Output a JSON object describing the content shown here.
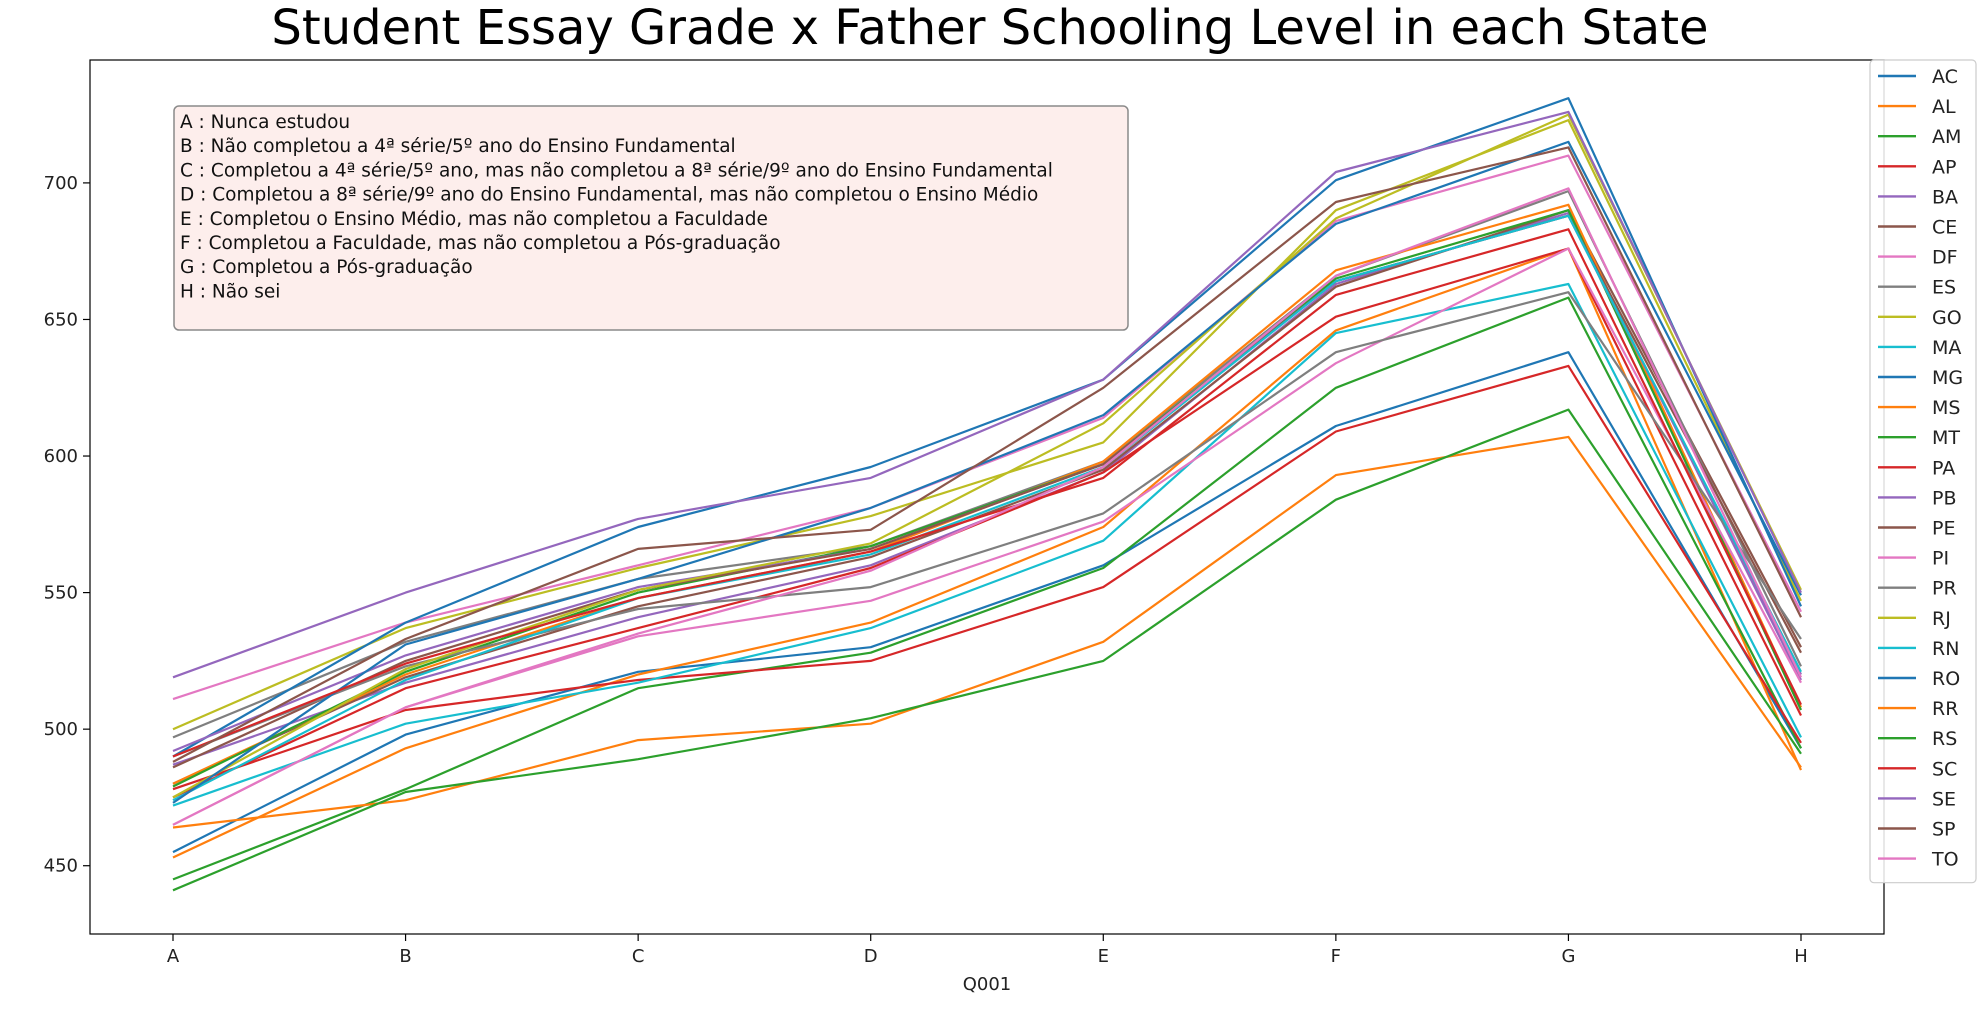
{
  "chart_data": {
    "type": "line",
    "title": "Student Essay Grade x Father Schooling Level in each State",
    "xlabel": "Q001",
    "ylabel": "",
    "categories": [
      "A",
      "B",
      "C",
      "D",
      "E",
      "F",
      "G",
      "H"
    ],
    "ylim": [
      425,
      745
    ],
    "yticks": [
      450,
      500,
      550,
      600,
      650,
      700
    ],
    "grid": false,
    "legend_position": "right, outside",
    "annotation_lines": [
      "A : Nunca estudou",
      "B : Não completou a 4ª série/5º ano do Ensino Fundamental",
      "C : Completou a 4ª série/5º ano, mas não completou a 8ª série/9º ano do Ensino Fundamental",
      "D : Completou a 8ª série/9º ano do Ensino Fundamental, mas não completou o Ensino Médio",
      "E : Completou o Ensino Médio, mas não completou a Faculdade",
      "F : Completou a Faculdade, mas não completou a Pós-graduação",
      "G : Completou a Pós-graduação",
      "H : Não sei"
    ],
    "series": [
      {
        "name": "AC",
        "color": "#1f77b4",
        "values": [
          455,
          498,
          521,
          530,
          560,
          611,
          638,
          493
        ]
      },
      {
        "name": "AL",
        "color": "#ff7f0e",
        "values": [
          453,
          493,
          520,
          539,
          574,
          646,
          676,
          485
        ]
      },
      {
        "name": "AM",
        "color": "#2ca02c",
        "values": [
          445,
          478,
          515,
          528,
          559,
          625,
          658,
          493
        ]
      },
      {
        "name": "AP",
        "color": "#d62728",
        "values": [
          478,
          507,
          518,
          525,
          552,
          609,
          633,
          495
        ]
      },
      {
        "name": "BA",
        "color": "#9467bd",
        "values": [
          487,
          517,
          541,
          560,
          594,
          663,
          689,
          518
        ]
      },
      {
        "name": "CE",
        "color": "#8c564b",
        "values": [
          480,
          519,
          545,
          563,
          595,
          662,
          690,
          530
        ]
      },
      {
        "name": "DF",
        "color": "#e377c2",
        "values": [
          511,
          539,
          560,
          581,
          614,
          686,
          710,
          543
        ]
      },
      {
        "name": "ES",
        "color": "#7f7f7f",
        "values": [
          497,
          532,
          555,
          567,
          598,
          666,
          697,
          523
        ]
      },
      {
        "name": "GO",
        "color": "#bcbd22",
        "values": [
          500,
          537,
          559,
          578,
          605,
          690,
          723,
          547
        ]
      },
      {
        "name": "MA",
        "color": "#17becf",
        "values": [
          472,
          502,
          517,
          537,
          569,
          645,
          663,
          497
        ]
      },
      {
        "name": "MG",
        "color": "#1f77b4",
        "values": [
          490,
          539,
          574,
          596,
          628,
          701,
          731,
          545
        ]
      },
      {
        "name": "MS",
        "color": "#ff7f0e",
        "values": [
          480,
          520,
          548,
          565,
          598,
          668,
          692,
          508
        ]
      },
      {
        "name": "MT",
        "color": "#2ca02c",
        "values": [
          479,
          521,
          550,
          567,
          597,
          665,
          690,
          507
        ]
      },
      {
        "name": "PA",
        "color": "#d62728",
        "values": [
          475,
          515,
          537,
          559,
          594,
          651,
          676,
          505
        ]
      },
      {
        "name": "PB",
        "color": "#9467bd",
        "values": [
          492,
          527,
          552,
          566,
          597,
          664,
          688,
          520
        ]
      },
      {
        "name": "PE",
        "color": "#8c564b",
        "values": [
          486,
          525,
          551,
          566,
          597,
          664,
          688,
          528
        ]
      },
      {
        "name": "PI",
        "color": "#e377c2",
        "values": [
          465,
          508,
          534,
          547,
          576,
          634,
          676,
          517
        ]
      },
      {
        "name": "PR",
        "color": "#7f7f7f",
        "values": [
          490,
          523,
          544,
          552,
          579,
          638,
          660,
          533
        ]
      },
      {
        "name": "RJ",
        "color": "#bcbd22",
        "values": [
          475,
          522,
          551,
          568,
          612,
          687,
          725,
          551
        ]
      },
      {
        "name": "RN",
        "color": "#17becf",
        "values": [
          474,
          518,
          548,
          564,
          596,
          664,
          688,
          521
        ]
      },
      {
        "name": "RO",
        "color": "#1f77b4",
        "values": [
          473,
          531,
          555,
          581,
          615,
          685,
          715,
          549
        ]
      },
      {
        "name": "RR",
        "color": "#ff7f0e",
        "values": [
          464,
          474,
          496,
          502,
          532,
          593,
          607,
          486
        ]
      },
      {
        "name": "RS",
        "color": "#2ca02c",
        "values": [
          441,
          477,
          489,
          504,
          525,
          584,
          617,
          491
        ]
      },
      {
        "name": "SC",
        "color": "#d62728",
        "values": [
          490,
          524,
          548,
          565,
          592,
          659,
          683,
          509
        ]
      },
      {
        "name": "SE",
        "color": "#9467bd",
        "values": [
          519,
          550,
          577,
          592,
          628,
          704,
          726,
          550
        ]
      },
      {
        "name": "SP",
        "color": "#8c564b",
        "values": [
          488,
          533,
          566,
          573,
          625,
          693,
          713,
          541
        ]
      },
      {
        "name": "TO",
        "color": "#e377c2",
        "values": [
          465,
          508,
          535,
          558,
          596,
          666,
          698,
          519
        ]
      }
    ]
  }
}
